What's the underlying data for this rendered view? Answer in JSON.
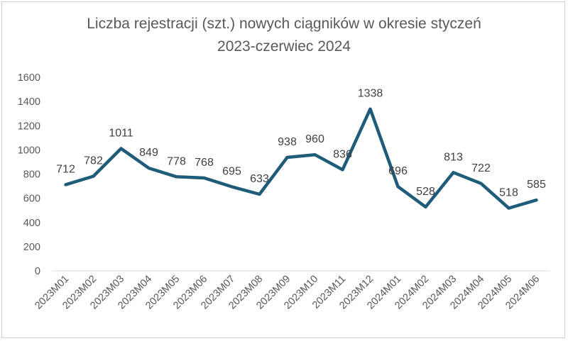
{
  "chart_data": {
    "type": "line",
    "title_line1": "Liczba rejestracji (szt.) nowych ciągników w okresie styczeń",
    "title_line2": "2023-czerwiec 2024",
    "categories": [
      "2023M01",
      "2023M02",
      "2023M03",
      "2023M04",
      "2023M05",
      "2023M06",
      "2023M07",
      "2023M08",
      "2023M09",
      "2023M10",
      "2023M11",
      "2023M12",
      "2024M01",
      "2024M02",
      "2024M03",
      "2024M04",
      "2024M05",
      "2024M06"
    ],
    "series": [
      {
        "values": [
          712,
          782,
          1011,
          849,
          778,
          768,
          695,
          633,
          938,
          960,
          836,
          1338,
          696,
          528,
          813,
          722,
          518,
          585
        ]
      }
    ],
    "ylim": [
      0,
      1600
    ],
    "yticks": [
      0,
      200,
      400,
      600,
      800,
      1000,
      1200,
      1400,
      1600
    ],
    "grid": false,
    "legend": "none",
    "line_color": "#1f5c7a"
  }
}
